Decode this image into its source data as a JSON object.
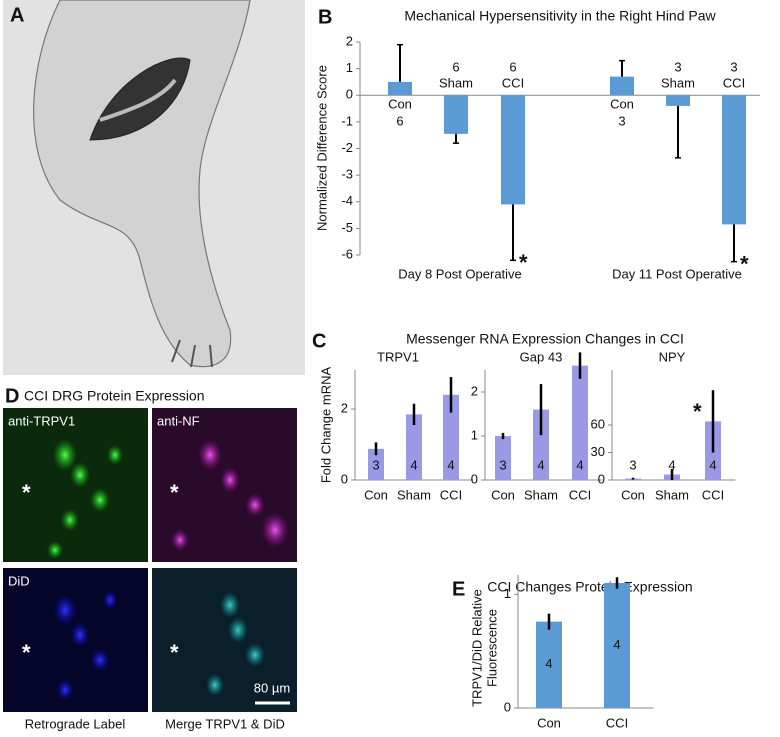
{
  "figure": {
    "letters": [
      "A",
      "B",
      "C",
      "D",
      "E"
    ],
    "panel_c": {
      "title": "Messenger RNA Expression Changes in CCI",
      "ylabel": "Fold Change mRNA"
    },
    "panel_d": {
      "title": "CCI DRG Protein Expression",
      "image_labels": [
        "anti-TRPV1",
        "anti-NF",
        "DiD"
      ],
      "marker": "*",
      "scale_bar": "80 µm",
      "captions": [
        "Retrograde Label",
        "Merge TRPV1 & DiD"
      ]
    }
  },
  "chart_data": [
    {
      "type": "bar",
      "title": "Mechanical Hypersensitivity in the Right Hind Paw",
      "ylabel": "Normalized Difference Score",
      "categories": [
        "Con",
        "Sham",
        "CCI",
        "Con",
        "Sham",
        "CCI"
      ],
      "groups": [
        "Day 8 Post Operative",
        "Day 11 Post Operative"
      ],
      "values": [
        0.5,
        -1.45,
        -4.1,
        0.7,
        -0.4,
        -4.85
      ],
      "errors": [
        1.4,
        0.35,
        2.1,
        0.6,
        1.95,
        1.4
      ],
      "n": [
        6,
        6,
        6,
        3,
        3,
        3
      ],
      "significance": [
        null,
        null,
        "*",
        null,
        null,
        "*"
      ],
      "ylim": [
        -6,
        2
      ],
      "yticks": [
        -6,
        -5,
        -4,
        -3,
        -2,
        -1,
        0,
        1,
        2
      ],
      "color": "#5b9bd5",
      "error_style": "outward"
    },
    {
      "type": "bar",
      "title": "TRPV1",
      "categories": [
        "Con",
        "Sham",
        "CCI"
      ],
      "values": [
        0.88,
        1.85,
        2.4
      ],
      "errors": [
        0.18,
        0.3,
        0.5
      ],
      "n": [
        3,
        4,
        4
      ],
      "ylim": [
        0,
        3.1
      ],
      "yticks": [
        0,
        2
      ],
      "color": "#9999e6",
      "error_style": "both"
    },
    {
      "type": "bar",
      "title": "Gap 43",
      "categories": [
        "Con",
        "Sham",
        "CCI"
      ],
      "values": [
        1.0,
        1.6,
        2.6
      ],
      "errors": [
        0.07,
        0.58,
        0.3
      ],
      "n": [
        3,
        4,
        4
      ],
      "ylim": [
        0,
        2.5
      ],
      "yticks": [
        0,
        1,
        2
      ],
      "color": "#9999e6",
      "error_style": "both"
    },
    {
      "type": "bar",
      "title": "NPY",
      "categories": [
        "Con",
        "Sham",
        "CCI"
      ],
      "values": [
        1.5,
        6,
        64
      ],
      "errors": [
        1,
        6,
        34
      ],
      "n": [
        3,
        4,
        4
      ],
      "significance": [
        null,
        null,
        "*"
      ],
      "ylim": [
        0,
        120
      ],
      "yticks": [
        0,
        30,
        60
      ],
      "color": "#9999e6",
      "error_style": "both"
    },
    {
      "type": "bar",
      "title": "CCI Changes Protein Expression",
      "ylabel": [
        "TRPV1/DiD Relative",
        "Fluorescence"
      ],
      "categories": [
        "Con",
        "CCI"
      ],
      "values": [
        0.76,
        1.1
      ],
      "errors": [
        0.07,
        0.05
      ],
      "n": [
        4,
        4
      ],
      "ylim": [
        0,
        1.17
      ],
      "yticks": [
        0,
        1
      ],
      "color": "#5b9bd5",
      "error_style": "both"
    }
  ]
}
